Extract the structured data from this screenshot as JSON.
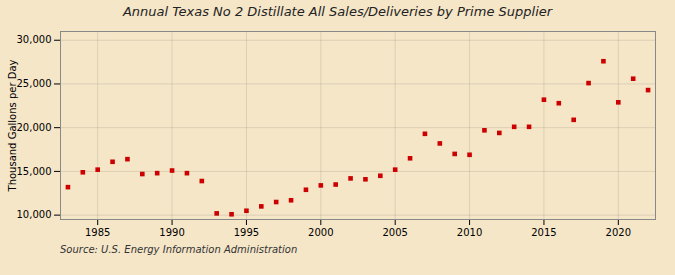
{
  "chart_data": {
    "type": "scatter",
    "title": "Annual Texas No 2 Distillate All Sales/Deliveries by Prime Supplier",
    "ylabel": "Thousand Gallons per Day",
    "caption": "Source: U.S. Energy Information Administration",
    "x": [
      1983,
      1984,
      1985,
      1986,
      1987,
      1988,
      1989,
      1990,
      1991,
      1992,
      1993,
      1994,
      1995,
      1996,
      1997,
      1998,
      1999,
      2000,
      2001,
      2002,
      2003,
      2004,
      2005,
      2006,
      2007,
      2008,
      2009,
      2010,
      2011,
      2012,
      2013,
      2014,
      2015,
      2016,
      2017,
      2018,
      2019,
      2020,
      2021,
      2022
    ],
    "values": [
      13200,
      14900,
      15200,
      16100,
      16400,
      14700,
      14800,
      15100,
      14800,
      13900,
      10200,
      10100,
      10500,
      11000,
      11500,
      11700,
      12900,
      13400,
      13500,
      14200,
      14100,
      14500,
      15200,
      16500,
      19300,
      18200,
      17000,
      16900,
      19700,
      19400,
      20100,
      20100,
      23200,
      22800,
      20900,
      25100,
      27600,
      22900,
      25600,
      24300
    ],
    "color": "#cc0000",
    "marker": "square",
    "xlim": [
      1982.5,
      2022.5
    ],
    "ylim": [
      9500,
      31000
    ],
    "xticks": [
      1985,
      1990,
      1995,
      2000,
      2005,
      2010,
      2015,
      2020
    ],
    "yticks": [
      {
        "value": 10000,
        "label": "10,000"
      },
      {
        "value": 15000,
        "label": "15,000"
      },
      {
        "value": 20000,
        "label": "20,000"
      },
      {
        "value": 25000,
        "label": "25,000"
      },
      {
        "value": 30000,
        "label": "30,000"
      }
    ],
    "grid": true
  }
}
